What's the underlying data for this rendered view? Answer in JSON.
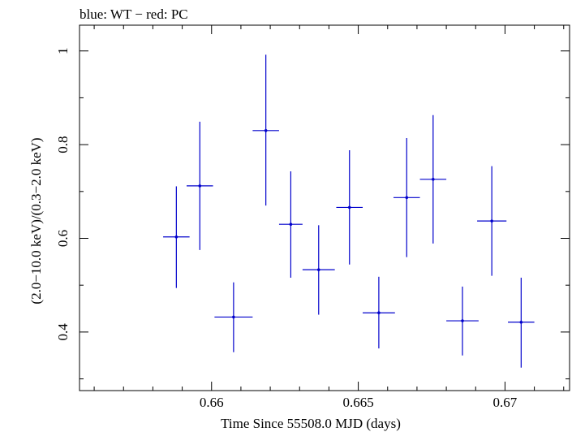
{
  "chart_data": {
    "type": "scatter",
    "title": "blue: WT − red: PC",
    "xlabel": "Time Since 55508.0 MJD (days)",
    "ylabel": "(2.0−10.0 keV)/(0.3−2.0 keV)",
    "xlim": [
      0.6555,
      0.6722
    ],
    "ylim": [
      0.275,
      1.055
    ],
    "x_ticks": [
      0.66,
      0.665,
      0.67
    ],
    "x_tick_labels": [
      "0.66",
      "0.665",
      "0.67"
    ],
    "y_ticks": [
      0.4,
      0.6,
      0.8,
      1.0
    ],
    "y_tick_labels": [
      "0.4",
      "0.6",
      "0.8",
      "1"
    ],
    "grid": false,
    "series": [
      {
        "color": "#0000cc",
        "points": [
          {
            "x": 0.6588,
            "y": 0.603,
            "xerr": 0.00045,
            "ylo": 0.494,
            "yhi": 0.711
          },
          {
            "x": 0.6596,
            "y": 0.712,
            "xerr": 0.00045,
            "ylo": 0.575,
            "yhi": 0.849
          },
          {
            "x": 0.66075,
            "y": 0.432,
            "xerr": 0.00065,
            "ylo": 0.357,
            "yhi": 0.506
          },
          {
            "x": 0.66185,
            "y": 0.83,
            "xerr": 0.00045,
            "ylo": 0.67,
            "yhi": 0.992
          },
          {
            "x": 0.6627,
            "y": 0.63,
            "xerr": 0.0004,
            "ylo": 0.516,
            "yhi": 0.743
          },
          {
            "x": 0.66365,
            "y": 0.533,
            "xerr": 0.00055,
            "ylo": 0.437,
            "yhi": 0.628
          },
          {
            "x": 0.6647,
            "y": 0.666,
            "xerr": 0.00045,
            "ylo": 0.544,
            "yhi": 0.788
          },
          {
            "x": 0.6657,
            "y": 0.441,
            "xerr": 0.00055,
            "ylo": 0.365,
            "yhi": 0.518
          },
          {
            "x": 0.66665,
            "y": 0.687,
            "xerr": 0.00045,
            "ylo": 0.56,
            "yhi": 0.814
          },
          {
            "x": 0.66755,
            "y": 0.726,
            "xerr": 0.00045,
            "ylo": 0.589,
            "yhi": 0.863
          },
          {
            "x": 0.66855,
            "y": 0.424,
            "xerr": 0.00055,
            "ylo": 0.35,
            "yhi": 0.497
          },
          {
            "x": 0.66955,
            "y": 0.637,
            "xerr": 0.0005,
            "ylo": 0.52,
            "yhi": 0.754
          },
          {
            "x": 0.67055,
            "y": 0.421,
            "xerr": 0.00045,
            "ylo": 0.324,
            "yhi": 0.516
          }
        ]
      }
    ]
  }
}
